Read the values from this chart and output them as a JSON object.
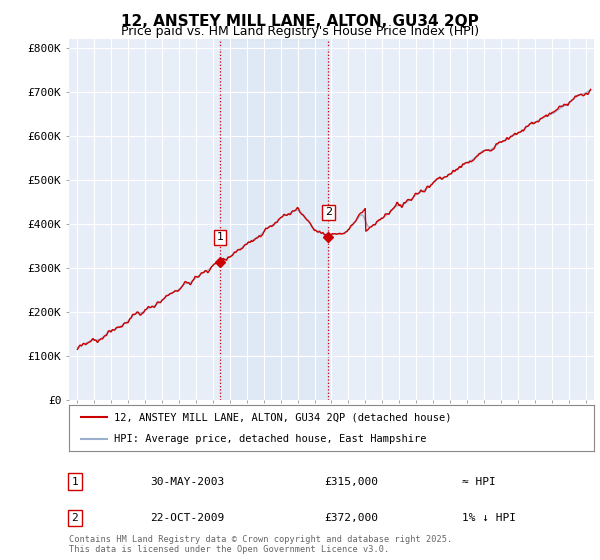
{
  "title": "12, ANSTEY MILL LANE, ALTON, GU34 2QP",
  "subtitle": "Price paid vs. HM Land Registry's House Price Index (HPI)",
  "ylabel_ticks": [
    "£0",
    "£100K",
    "£200K",
    "£300K",
    "£400K",
    "£500K",
    "£600K",
    "£700K",
    "£800K"
  ],
  "ytick_values": [
    0,
    100000,
    200000,
    300000,
    400000,
    500000,
    600000,
    700000,
    800000
  ],
  "ylim": [
    0,
    820000
  ],
  "xlim_start": 1994.5,
  "xlim_end": 2025.5,
  "background_color": "#ffffff",
  "plot_bg_color": "#e8eef8",
  "grid_color": "#ffffff",
  "line_color": "#cc0000",
  "hpi_color": "#9bb0cc",
  "sale1_x": 2003.41,
  "sale1_y": 315000,
  "sale1_label": "1",
  "sale2_x": 2009.81,
  "sale2_y": 372000,
  "sale2_label": "2",
  "vline_color": "#cc0000",
  "legend_address": "12, ANSTEY MILL LANE, ALTON, GU34 2QP (detached house)",
  "legend_hpi": "HPI: Average price, detached house, East Hampshire",
  "table_row1_num": "1",
  "table_row1_date": "30-MAY-2003",
  "table_row1_price": "£315,000",
  "table_row1_hpi": "≈ HPI",
  "table_row2_num": "2",
  "table_row2_date": "22-OCT-2009",
  "table_row2_price": "£372,000",
  "table_row2_hpi": "1% ↓ HPI",
  "footer": "Contains HM Land Registry data © Crown copyright and database right 2025.\nThis data is licensed under the Open Government Licence v3.0.",
  "title_fontsize": 11,
  "subtitle_fontsize": 9,
  "tick_fontsize": 8,
  "span_alpha": 0.25,
  "span_color": "#c8d8f0"
}
